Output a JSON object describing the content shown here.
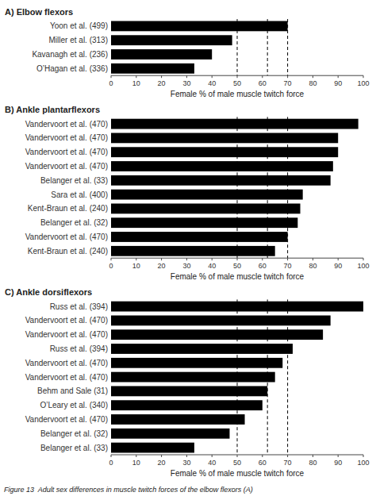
{
  "chart_data": [
    {
      "type": "bar",
      "orientation": "horizontal",
      "title": "A) Elbow flexors",
      "categories": [
        "Yoon et al. (499)",
        "Miller et al. (313)",
        "Kavanagh et al. (236)",
        "O’Hagan et al. (336)"
      ],
      "values": [
        70,
        48,
        40,
        33
      ],
      "ref_lines": [
        50,
        62,
        70
      ],
      "color": "#000000",
      "xlabel": "Female % of male muscle twitch force",
      "xlim": [
        0,
        100
      ],
      "xticks": [
        0,
        10,
        20,
        30,
        40,
        50,
        60,
        70,
        80,
        90,
        100
      ]
    },
    {
      "type": "bar",
      "orientation": "horizontal",
      "title": "B) Ankle plantarflexors",
      "categories": [
        "Vandervoort et al. (470)",
        "Vandervoort et al. (470)",
        "Vandervoort et al. (470)",
        "Vandervoort et al. (470)",
        "Belanger et al. (33)",
        "Sara et al. (400)",
        "Kent-Braun et al. (240)",
        "Belanger et al. (32)",
        "Vandervoort et al. (470)",
        "Kent-Braun et al. (240)"
      ],
      "values": [
        98,
        90,
        90,
        88,
        87,
        76,
        75,
        74,
        70,
        65
      ],
      "ref_lines": [
        50,
        62,
        70
      ],
      "color": "#000000",
      "xlabel": "Female % of male muscle twitch force",
      "xlim": [
        0,
        100
      ],
      "xticks": [
        0,
        10,
        20,
        30,
        40,
        50,
        60,
        70,
        80,
        90,
        100
      ]
    },
    {
      "type": "bar",
      "orientation": "horizontal",
      "title": "C) Ankle dorsiflexors",
      "categories": [
        "Russ et al. (394)",
        "Vandervoort et al. (470)",
        "Vandervoort et al. (470)",
        "Russ et al. (394)",
        "Vandervoort et al. (470)",
        "Vandervoort et al. (470)",
        "Behm and Sale (31)",
        "O’Leary et al. (340)",
        "Vandervoort et al. (470)",
        "Belanger et al. (32)",
        "Belanger et al. (33)"
      ],
      "values": [
        100,
        87,
        84,
        72,
        68,
        65,
        62,
        60,
        53,
        47,
        33
      ],
      "ref_lines": [
        50,
        62,
        70
      ],
      "color": "#000000",
      "xlabel": "Female % of male muscle twitch force",
      "xlim": [
        0,
        100
      ],
      "xticks": [
        0,
        10,
        20,
        30,
        40,
        50,
        60,
        70,
        80,
        90,
        100
      ]
    }
  ],
  "caption": "Figure 13  Adult sex differences in muscle twitch forces of the elbow flexors (A)"
}
